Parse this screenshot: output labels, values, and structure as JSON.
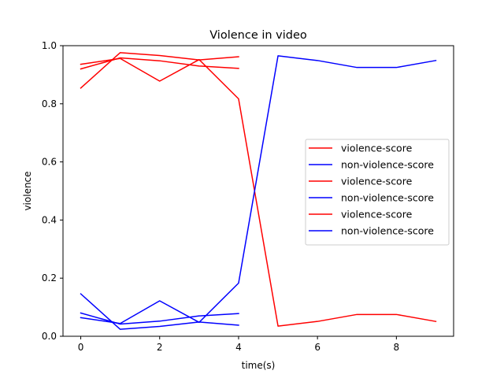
{
  "chart_data": {
    "type": "line",
    "title": "Violence in video",
    "xlabel": "time(s)",
    "ylabel": "violence",
    "xlim": [
      -0.45,
      9.45
    ],
    "ylim": [
      0,
      1.0
    ],
    "xticks": [
      0,
      2,
      4,
      6,
      8
    ],
    "xtick_labels": [
      "0",
      "2",
      "4",
      "6",
      "8"
    ],
    "yticks": [
      0,
      0.2,
      0.4,
      0.6,
      0.8,
      1.0
    ],
    "ytick_labels": [
      "0.0",
      "0.2",
      "0.4",
      "0.6",
      "0.8",
      "1.0"
    ],
    "grid": false,
    "legend_position": "center-right",
    "series": [
      {
        "name": "violence-score",
        "color": "#ff0000",
        "x": [
          0,
          1,
          2,
          3,
          4
        ],
        "values": [
          0.92,
          0.958,
          0.948,
          0.93,
          0.922
        ]
      },
      {
        "name": "non-violence-score",
        "color": "#0000ff",
        "x": [
          0,
          1,
          2,
          3,
          4
        ],
        "values": [
          0.08,
          0.042,
          0.052,
          0.07,
          0.078
        ]
      },
      {
        "name": "violence-score",
        "color": "#ff0000",
        "x": [
          0,
          1,
          2,
          3,
          4
        ],
        "values": [
          0.854,
          0.976,
          0.966,
          0.951,
          0.962
        ]
      },
      {
        "name": "non-violence-score",
        "color": "#0000ff",
        "x": [
          0,
          1,
          2,
          3,
          4
        ],
        "values": [
          0.146,
          0.024,
          0.034,
          0.049,
          0.038
        ]
      },
      {
        "name": "violence-score",
        "color": "#ff0000",
        "x": [
          0,
          1,
          2,
          3,
          4,
          5,
          6,
          7,
          8,
          9
        ],
        "values": [
          0.936,
          0.956,
          0.878,
          0.952,
          0.817,
          0.035,
          0.051,
          0.075,
          0.075,
          0.051
        ]
      },
      {
        "name": "non-violence-score",
        "color": "#0000ff",
        "x": [
          0,
          1,
          2,
          3,
          4,
          5,
          6,
          7,
          8,
          9
        ],
        "values": [
          0.064,
          0.044,
          0.122,
          0.048,
          0.183,
          0.965,
          0.949,
          0.925,
          0.925,
          0.949
        ]
      }
    ]
  }
}
